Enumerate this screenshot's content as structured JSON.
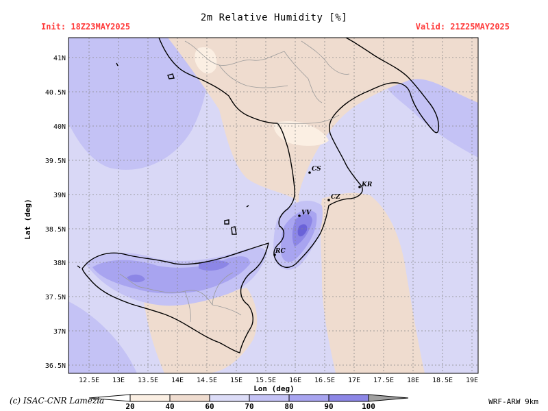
{
  "header": {
    "title": "2m Relative Humidity [%]",
    "init": "Init: 18Z23MAY2025",
    "valid": "Valid: 21Z25MAY2025"
  },
  "footer": {
    "credit": "(c) ISAC-CNR Lamezia",
    "model": "WRF-ARW 9km"
  },
  "axes": {
    "xlabel": "Lon (deg)",
    "ylabel": "Lat (deg)",
    "lon_ticks": [
      "12.5E",
      "13E",
      "13.5E",
      "14E",
      "14.5E",
      "15E",
      "15.5E",
      "16E",
      "16.5E",
      "17E",
      "17.5E",
      "18E",
      "18.5E",
      "19E"
    ],
    "lat_ticks": [
      "41N",
      "40.5N",
      "40N",
      "39.5N",
      "39N",
      "38.5N",
      "38N",
      "37.5N",
      "37N",
      "36.5N"
    ]
  },
  "cities": [
    {
      "code": "CS"
    },
    {
      "code": "KR"
    },
    {
      "code": "CZ"
    },
    {
      "code": "VV"
    },
    {
      "code": "RC"
    }
  ],
  "colorbar": {
    "labels": [
      "20",
      "40",
      "60",
      "70",
      "80",
      "90",
      "100"
    ],
    "colors": [
      "#fbefe3",
      "#efdccf",
      "#dcdcf7",
      "#c4c2f5",
      "#a8a4f0",
      "#8c86e6",
      "#6a62d8"
    ]
  },
  "palette": {
    "sea": "#d9d8f6",
    "dry": "#efdccf",
    "very_dry": "#fbefe3",
    "moist": "#c2c0f4",
    "wet": "#a8a4f0",
    "very_wet": "#8a84e8",
    "saturated": "#6a62d8",
    "title_red": "#ff3b3b"
  }
}
